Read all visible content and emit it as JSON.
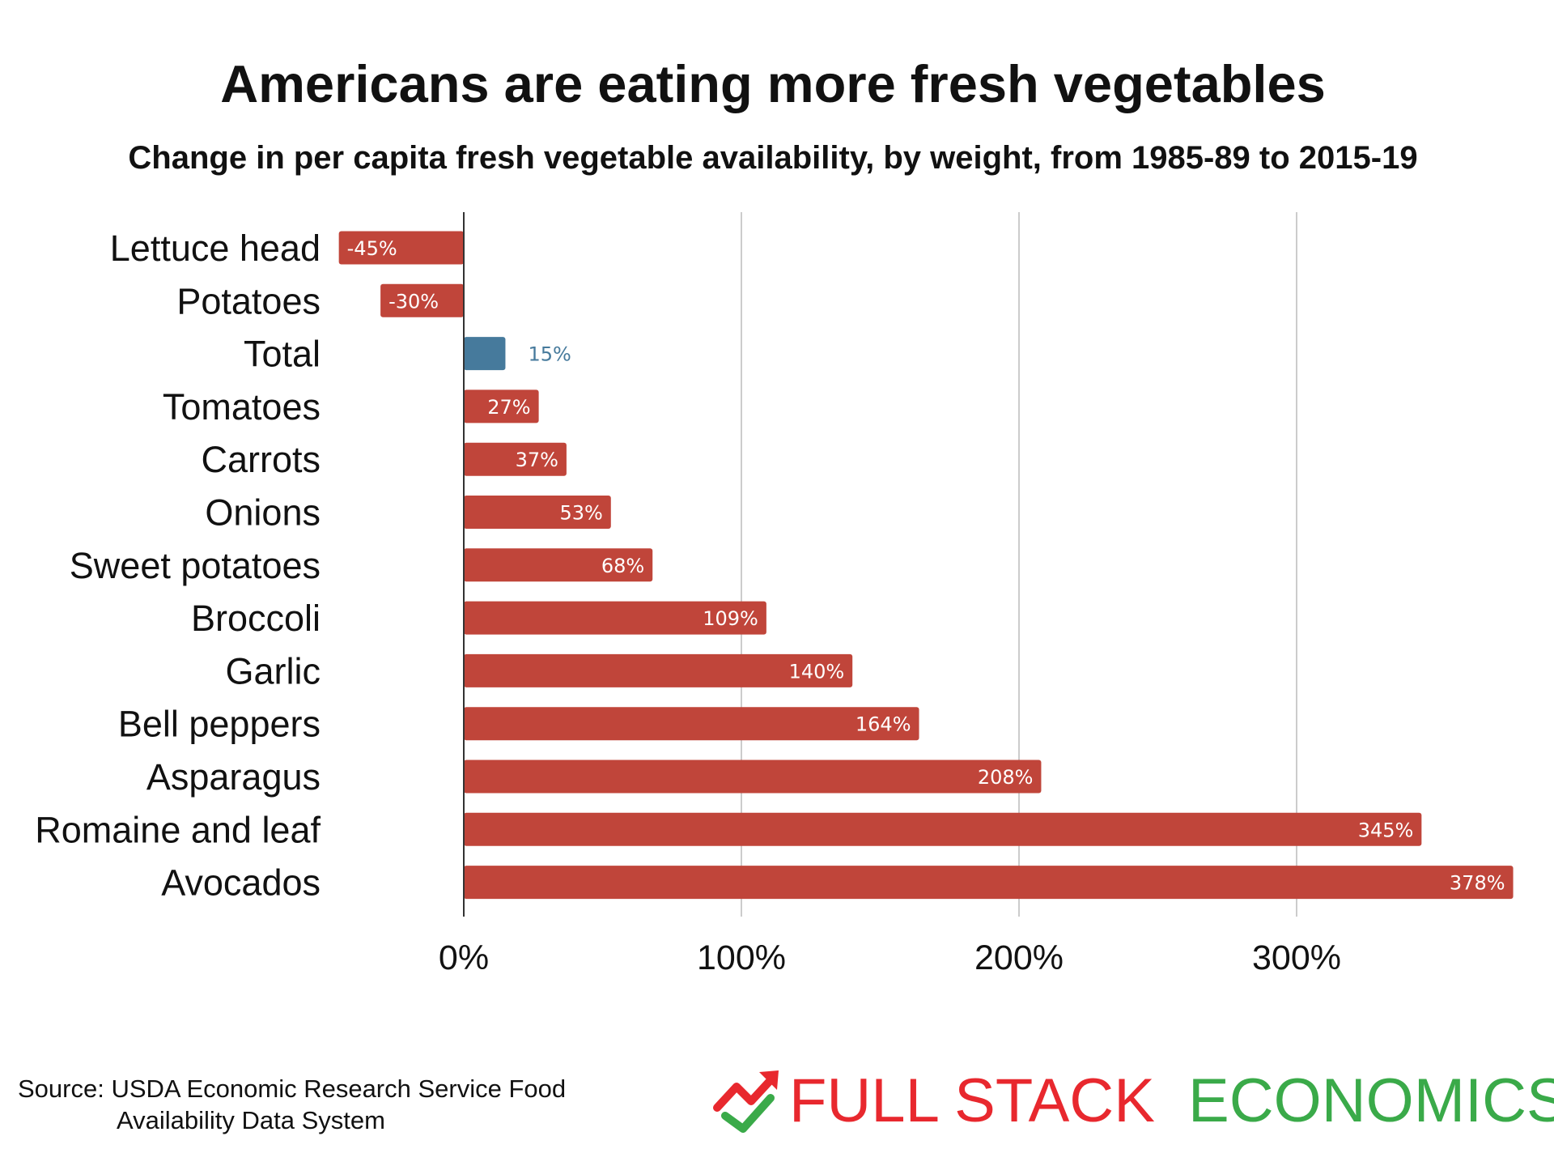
{
  "chart_data": {
    "type": "bar",
    "orientation": "horizontal",
    "title": "Americans are eating more fresh vegetables",
    "subtitle": "Change in per capita fresh vegetable availability, by weight, from 1985-89 to 2015-19",
    "categories": [
      "Lettuce head",
      "Potatoes",
      "Total",
      "Tomatoes",
      "Carrots",
      "Onions",
      "Sweet potatoes",
      "Broccoli",
      "Garlic",
      "Bell peppers",
      "Asparagus",
      "Romaine and leaf",
      "Avocados"
    ],
    "values": [
      -45,
      -30,
      15,
      27,
      37,
      53,
      68,
      109,
      140,
      164,
      208,
      345,
      378
    ],
    "value_labels": [
      "-45%",
      "-30%",
      "15%",
      "27%",
      "37%",
      "53%",
      "68%",
      "109%",
      "140%",
      "164%",
      "208%",
      "345%",
      "378%"
    ],
    "highlight_category": "Total",
    "xlim": [
      -45,
      378
    ],
    "xticks": [
      0,
      100,
      200,
      300
    ],
    "xtick_labels": [
      "0%",
      "100%",
      "200%",
      "300%"
    ],
    "grid": true,
    "colors": {
      "bar": "#c0453a",
      "highlight": "#467a9c",
      "grid": "#cccccc",
      "axis": "#333333"
    }
  },
  "source": {
    "line1": "Source: USDA Economic Research Service Food",
    "line2": "Availability Data System"
  },
  "brand": {
    "part1": "FULL STACK",
    "part2": "ECONOMICS",
    "icon": "trend-arrow-check-icon",
    "color1": "#e8282e",
    "color2": "#3aaa49"
  }
}
